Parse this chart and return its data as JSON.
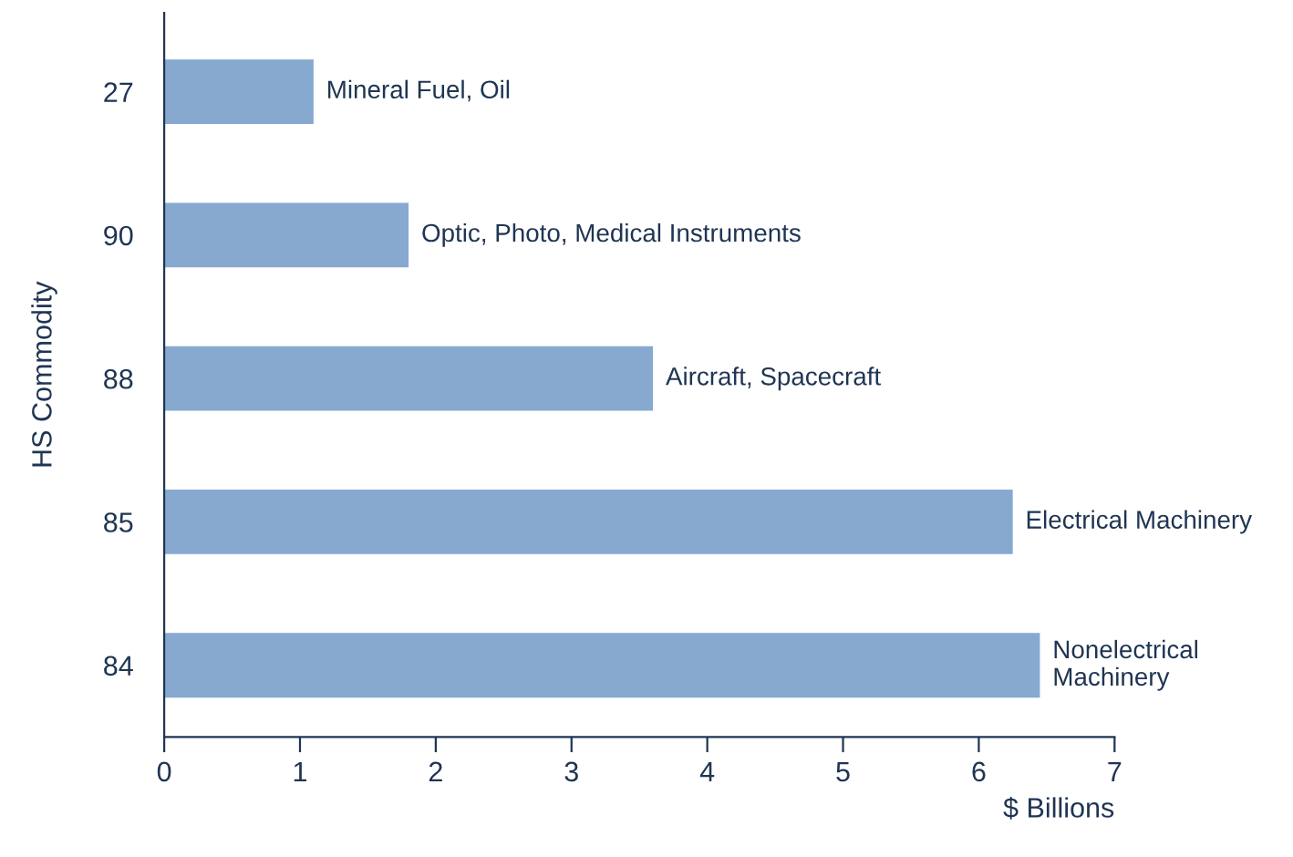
{
  "chart_data": {
    "type": "bar",
    "orientation": "horizontal",
    "xlabel": "$ Billions",
    "ylabel": "HS Commodity",
    "categories": [
      "27",
      "90",
      "88",
      "85",
      "84"
    ],
    "values": [
      1.1,
      1.8,
      3.6,
      6.25,
      6.45
    ],
    "color": "#87a9d0",
    "xlim": [
      0,
      7
    ],
    "xticks": [
      0,
      1,
      2,
      3,
      4,
      5,
      6,
      7
    ],
    "grid": false,
    "legend": false,
    "annotations": [
      {
        "text": "Mineral Fuel, Oil",
        "x": 1.1,
        "y": "27"
      },
      {
        "text": "Optic, Photo, Medical Instruments",
        "x": 1.8,
        "y": "90"
      },
      {
        "text": "Aircraft, Spacecraft",
        "x": 3.6,
        "y": "88"
      },
      {
        "text": "Electrical Machinery",
        "x": 6.25,
        "y": "85"
      },
      {
        "text": "Nonelectrical\nMachinery",
        "x": 6.45,
        "y": "84"
      }
    ]
  }
}
